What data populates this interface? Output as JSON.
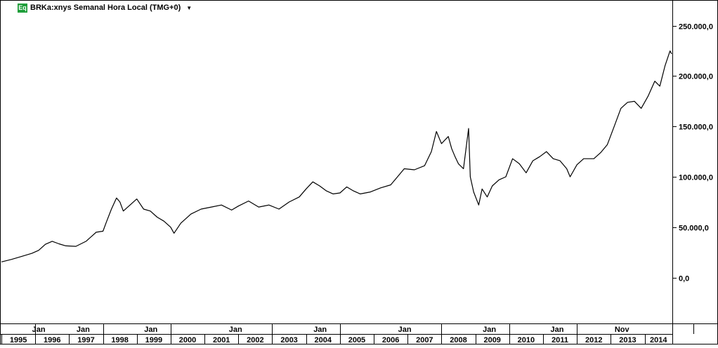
{
  "header": {
    "badge": "Eq",
    "title": "BRKa:xnys Semanal Hora Local (TMG+0)",
    "dropdown_icon": "caret-down-icon",
    "badge_color": "#1e9e3a"
  },
  "chart_data": {
    "type": "line",
    "title": "BRKa:xnys Semanal Hora Local (TMG+0)",
    "xlabel": "",
    "ylabel": "",
    "ylim": [
      -40000,
      270000
    ],
    "y_ticks": [
      {
        "value": 250000,
        "label": "250.000,0"
      },
      {
        "value": 200000,
        "label": "200.000,0"
      },
      {
        "value": 150000,
        "label": "150.000,0"
      },
      {
        "value": 100000,
        "label": "100.000,0"
      },
      {
        "value": 50000,
        "label": "50.000,0"
      },
      {
        "value": 0,
        "label": "0,0"
      }
    ],
    "x_range": [
      1995.0,
      2015.4
    ],
    "years": [
      "1995",
      "1996",
      "1997",
      "1998",
      "1999",
      "2000",
      "2001",
      "2002",
      "2003",
      "2004",
      "2005",
      "2006",
      "2007",
      "2008",
      "2009",
      "2010",
      "2011",
      "2012",
      "2013",
      "2014"
    ],
    "month_markers": [
      {
        "x": 1996.0,
        "label": "Jan"
      },
      {
        "x": 1998.0,
        "label": "Jan"
      },
      {
        "x": 2000.0,
        "label": "Jan"
      },
      {
        "x": 2003.0,
        "label": "Jan"
      },
      {
        "x": 2005.0,
        "label": "Jan"
      },
      {
        "x": 2008.0,
        "label": "Jan"
      },
      {
        "x": 2010.0,
        "label": "Jan"
      },
      {
        "x": 2012.0,
        "label": "Jan"
      },
      {
        "x": 2013.83,
        "label": "Nov"
      }
    ],
    "grid": false,
    "series": [
      {
        "color": "#000000",
        "points": [
          [
            1995.0,
            15500
          ],
          [
            1995.3,
            18000
          ],
          [
            1995.6,
            21000
          ],
          [
            1995.9,
            24000
          ],
          [
            1996.1,
            27000
          ],
          [
            1996.3,
            33000
          ],
          [
            1996.5,
            36000
          ],
          [
            1996.7,
            33500
          ],
          [
            1996.9,
            31500
          ],
          [
            1997.2,
            31000
          ],
          [
            1997.5,
            36000
          ],
          [
            1997.8,
            45000
          ],
          [
            1998.0,
            46000
          ],
          [
            1998.1,
            55000
          ],
          [
            1998.25,
            68000
          ],
          [
            1998.4,
            79000
          ],
          [
            1998.5,
            75000
          ],
          [
            1998.6,
            66000
          ],
          [
            1998.8,
            72000
          ],
          [
            1999.0,
            78000
          ],
          [
            1999.2,
            68000
          ],
          [
            1999.4,
            66000
          ],
          [
            1999.6,
            60000
          ],
          [
            1999.8,
            56000
          ],
          [
            2000.0,
            50000
          ],
          [
            2000.1,
            44000
          ],
          [
            2000.3,
            54000
          ],
          [
            2000.6,
            63000
          ],
          [
            2000.9,
            68000
          ],
          [
            2001.2,
            70000
          ],
          [
            2001.5,
            72000
          ],
          [
            2001.8,
            67000
          ],
          [
            2002.0,
            71000
          ],
          [
            2002.3,
            76000
          ],
          [
            2002.6,
            70000
          ],
          [
            2002.9,
            72000
          ],
          [
            2003.2,
            68000
          ],
          [
            2003.5,
            75000
          ],
          [
            2003.8,
            80000
          ],
          [
            2004.0,
            88000
          ],
          [
            2004.2,
            95000
          ],
          [
            2004.4,
            91000
          ],
          [
            2004.6,
            86000
          ],
          [
            2004.8,
            83000
          ],
          [
            2005.0,
            84000
          ],
          [
            2005.2,
            90000
          ],
          [
            2005.4,
            86000
          ],
          [
            2005.6,
            83000
          ],
          [
            2005.9,
            85000
          ],
          [
            2006.2,
            89000
          ],
          [
            2006.5,
            92000
          ],
          [
            2006.7,
            100000
          ],
          [
            2006.9,
            108000
          ],
          [
            2007.2,
            107000
          ],
          [
            2007.5,
            111000
          ],
          [
            2007.7,
            125000
          ],
          [
            2007.85,
            145000
          ],
          [
            2008.0,
            133000
          ],
          [
            2008.2,
            140000
          ],
          [
            2008.3,
            128000
          ],
          [
            2008.4,
            120000
          ],
          [
            2008.5,
            113000
          ],
          [
            2008.65,
            108000
          ],
          [
            2008.8,
            148000
          ],
          [
            2008.85,
            100000
          ],
          [
            2008.95,
            85000
          ],
          [
            2009.1,
            72000
          ],
          [
            2009.2,
            88000
          ],
          [
            2009.35,
            80000
          ],
          [
            2009.5,
            91000
          ],
          [
            2009.7,
            97000
          ],
          [
            2009.9,
            100000
          ],
          [
            2010.1,
            118000
          ],
          [
            2010.3,
            113000
          ],
          [
            2010.5,
            104000
          ],
          [
            2010.7,
            116000
          ],
          [
            2010.9,
            120000
          ],
          [
            2011.1,
            125000
          ],
          [
            2011.3,
            118000
          ],
          [
            2011.5,
            116000
          ],
          [
            2011.7,
            108000
          ],
          [
            2011.8,
            100000
          ],
          [
            2012.0,
            112000
          ],
          [
            2012.2,
            118000
          ],
          [
            2012.5,
            118000
          ],
          [
            2012.7,
            124000
          ],
          [
            2012.9,
            132000
          ],
          [
            2013.1,
            150000
          ],
          [
            2013.3,
            168000
          ],
          [
            2013.5,
            174000
          ],
          [
            2013.7,
            175000
          ],
          [
            2013.9,
            168000
          ],
          [
            2014.1,
            180000
          ],
          [
            2014.3,
            195000
          ],
          [
            2014.45,
            190000
          ],
          [
            2014.6,
            210000
          ],
          [
            2014.75,
            225000
          ],
          [
            2014.8,
            222000
          ]
        ]
      }
    ]
  }
}
